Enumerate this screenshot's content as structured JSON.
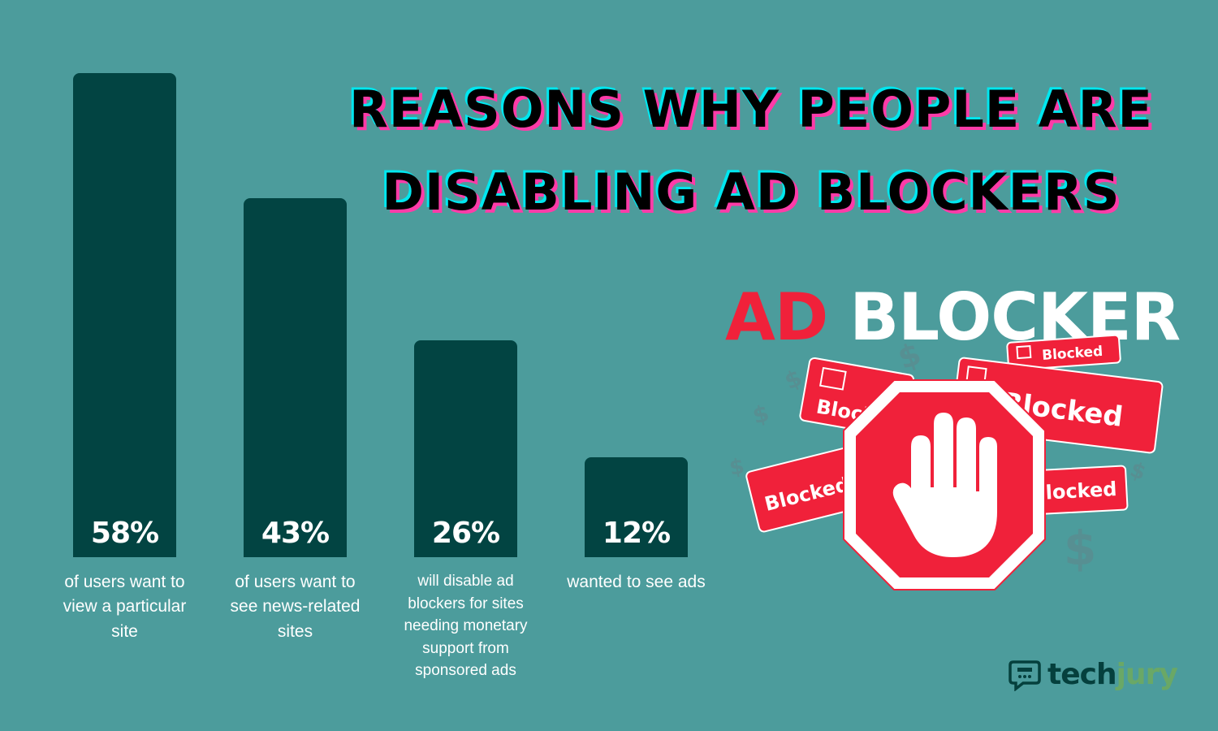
{
  "chart_data": {
    "type": "bar",
    "title_lines": [
      "REASONS WHY PEOPLE ARE",
      "DISABLING AD BLOCKERS"
    ],
    "ylim": [
      0,
      60
    ],
    "categories": [
      "of users want to view a particular site",
      "of users want to see news-related sites",
      "will disable ad blockers for sites needing monetary support from sponsored ads",
      "wanted to see ads"
    ],
    "values": [
      58,
      43,
      26,
      12
    ],
    "value_labels": [
      "58%",
      "43%",
      "26%",
      "12%"
    ],
    "category_lines": [
      [
        "of users want to",
        "view a particular",
        "site"
      ],
      [
        "of users want to",
        "see news-related",
        "sites"
      ],
      [
        "will disable ad",
        "blockers for sites",
        "needing monetary",
        "support from",
        "sponsored ads"
      ],
      [
        "wanted to see ads"
      ]
    ],
    "bar_color": "#024442",
    "background_color": "#4c9c9c"
  },
  "illustration": {
    "heading_red": "AD",
    "heading_white": "BLOCKER",
    "cards": [
      "Blocked",
      "Blocked",
      "Blocked",
      "Blocked",
      "Blocked"
    ],
    "icons": [
      "stop-hand-icon",
      "dollar-sign-icon"
    ],
    "accent_red": "#f0213a"
  },
  "logo": {
    "text_dark": "tech",
    "text_light": "jury"
  }
}
